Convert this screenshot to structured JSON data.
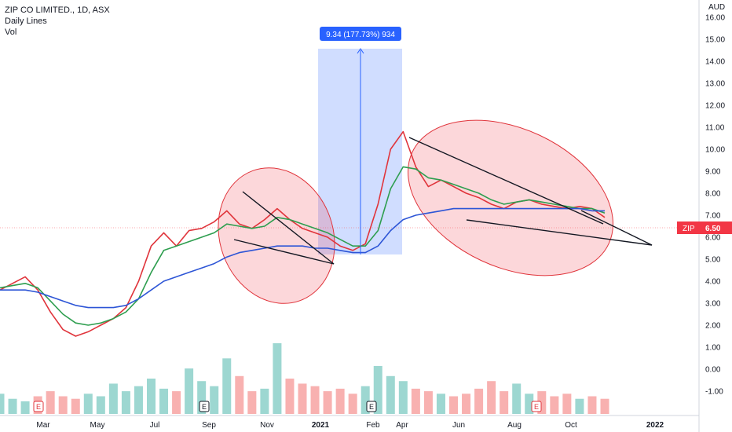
{
  "chart_data": {
    "type": "line",
    "title": "ZIP CO LIMITED., 1D, ASX",
    "subtitle": "Daily Lines",
    "volume_label": "Vol",
    "currency": "AUD",
    "symbol": "ZIP",
    "last_price": "6.50",
    "ylim": [
      -1.5,
      16.5
    ],
    "y_ticks": [
      "16.00",
      "15.00",
      "14.00",
      "13.00",
      "12.00",
      "11.00",
      "10.00",
      "9.00",
      "8.00",
      "7.00",
      "6.00",
      "5.00",
      "4.00",
      "3.00",
      "2.00",
      "1.00",
      "0.00",
      "-1.00"
    ],
    "x_labels": [
      "Mar",
      "May",
      "Jul",
      "Sep",
      "Nov",
      "2021",
      "Feb",
      "Apr",
      "Jun",
      "Aug",
      "Oct",
      "2022"
    ],
    "earnings_markers": [
      "E",
      "E",
      "E",
      "E"
    ],
    "measure_label": "9.34 (177.73%) 934",
    "series": [
      {
        "name": "",
        "color": "#e0343b",
        "values": [
          3.6,
          3.9,
          4.2,
          3.6,
          2.6,
          1.8,
          1.5,
          1.7,
          2.0,
          2.3,
          2.8,
          4.0,
          5.6,
          6.2,
          5.6,
          6.3,
          6.4,
          6.7,
          7.2,
          6.6,
          6.4,
          6.8,
          7.3,
          6.8,
          6.4,
          6.2,
          6.0,
          5.6,
          5.4,
          5.7,
          7.5,
          10.0,
          10.8,
          9.2,
          8.3,
          8.6,
          8.3,
          8.0,
          7.8,
          7.5,
          7.3,
          7.6,
          7.7,
          7.5,
          7.4,
          7.3,
          7.4,
          7.3,
          6.9
        ]
      },
      {
        "name": "",
        "color": "#2e9e4f",
        "values": [
          3.7,
          3.8,
          3.9,
          3.7,
          3.1,
          2.5,
          2.1,
          2.0,
          2.1,
          2.3,
          2.6,
          3.2,
          4.4,
          5.4,
          5.6,
          5.8,
          6.0,
          6.2,
          6.6,
          6.5,
          6.4,
          6.5,
          6.9,
          6.8,
          6.6,
          6.4,
          6.2,
          5.9,
          5.6,
          5.6,
          6.3,
          8.2,
          9.2,
          9.1,
          8.7,
          8.6,
          8.4,
          8.2,
          8.0,
          7.7,
          7.5,
          7.6,
          7.7,
          7.6,
          7.5,
          7.4,
          7.3,
          7.3,
          7.1
        ]
      },
      {
        "name": "",
        "color": "#2d55d6",
        "values": [
          3.6,
          3.6,
          3.6,
          3.5,
          3.3,
          3.1,
          2.9,
          2.8,
          2.8,
          2.8,
          2.9,
          3.2,
          3.6,
          4.0,
          4.2,
          4.4,
          4.6,
          4.8,
          5.1,
          5.3,
          5.4,
          5.5,
          5.6,
          5.6,
          5.6,
          5.5,
          5.5,
          5.4,
          5.3,
          5.3,
          5.6,
          6.3,
          6.8,
          7.0,
          7.1,
          7.2,
          7.3,
          7.3,
          7.3,
          7.3,
          7.3,
          7.3,
          7.3,
          7.3,
          7.3,
          7.3,
          7.3,
          7.2,
          7.2
        ]
      }
    ],
    "volume": [
      0.8,
      0.6,
      0.5,
      0.7,
      0.9,
      0.7,
      0.6,
      0.8,
      0.7,
      1.2,
      0.9,
      1.1,
      1.4,
      1.0,
      0.9,
      1.8,
      1.3,
      1.1,
      2.2,
      1.5,
      0.9,
      1.0,
      2.8,
      1.4,
      1.2,
      1.1,
      0.9,
      1.0,
      0.8,
      1.1,
      1.9,
      1.5,
      1.3,
      1.0,
      0.9,
      0.8,
      0.7,
      0.8,
      1.0,
      1.3,
      0.9,
      1.2,
      0.8,
      0.9,
      0.7,
      0.8,
      0.6,
      0.7,
      0.6
    ]
  }
}
